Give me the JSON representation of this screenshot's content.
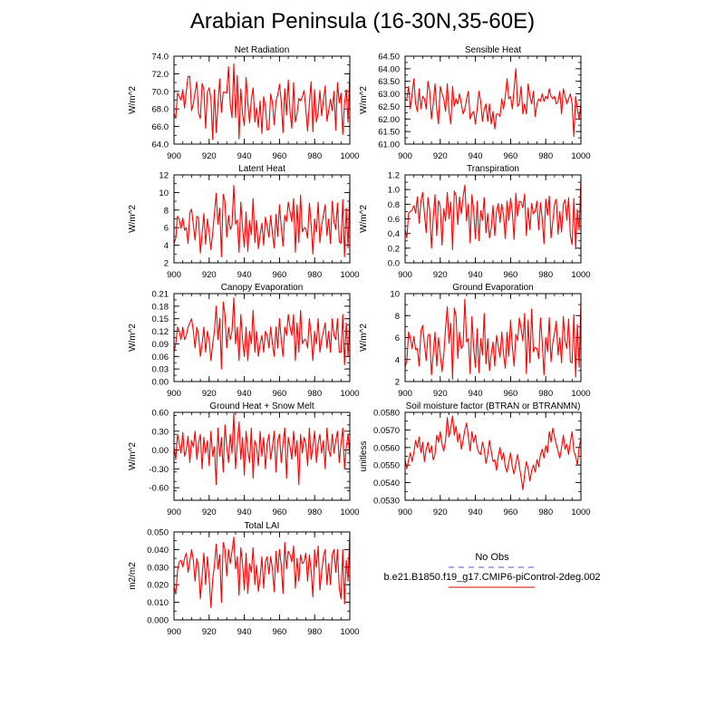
{
  "figure": {
    "title": "Arabian Peninsula (16-30N,35-60E)",
    "legend": {
      "entries": [
        {
          "label": "No Obs",
          "color": "#4a5bd6",
          "style": "dashed"
        },
        {
          "label": "b.e21.B1850.f19_g17.CMIP6-piControl-2deg.002",
          "color": "#e00000",
          "style": "solid"
        }
      ]
    },
    "colors": {
      "series": "#ff0000",
      "obs": "#4a5bd6"
    }
  },
  "chart_data": [
    {
      "type": "line",
      "title": "Net Radiation",
      "ylabel": "W/m^2",
      "xlim": [
        900,
        1000
      ],
      "ylim": [
        64.0,
        74.0
      ],
      "xticks": [
        900,
        920,
        940,
        960,
        980,
        1000
      ],
      "yticks": [
        64.0,
        66.0,
        68.0,
        70.0,
        72.0,
        74.0
      ],
      "ytick_labels": [
        "64.0",
        "66.0",
        "68.0",
        "70.0",
        "72.0",
        "74.0"
      ],
      "x_start": 900,
      "values": [
        67.5,
        67.0,
        69.8,
        69.4,
        69.0,
        70.2,
        68.1,
        70.0,
        71.7,
        71.7,
        67.8,
        68.6,
        69.9,
        71.1,
        67.5,
        66.9,
        70.9,
        70.2,
        65.8,
        69.9,
        70.4,
        69.2,
        64.5,
        70.2,
        65.3,
        68.5,
        71.4,
        67.6,
        69.9,
        69.9,
        69.8,
        72.8,
        68.5,
        67.0,
        73.1,
        67.0,
        71.8,
        64.6,
        70.3,
        67.4,
        66.1,
        71.6,
        68.7,
        66.4,
        69.1,
        70.4,
        66.5,
        68.1,
        65.9,
        68.9,
        65.2,
        69.4,
        68.3,
        65.6,
        65.7,
        69.7,
        68.7,
        66.2,
        68.9,
        69.6,
        70.8,
        68.9,
        65.3,
        70.3,
        67.3,
        71.3,
        67.7,
        65.8,
        71.0,
        66.5,
        67.5,
        69.2,
        68.9,
        69.4,
        70.1,
        67.9,
        65.5,
        68.7,
        71.1,
        65.4,
        70.2,
        66.5,
        67.6,
        70.1,
        67.2,
        69.0,
        70.6,
        66.6,
        67.8,
        69.1,
        67.8,
        70.0,
        65.6,
        71.0,
        68.7,
        69.8,
        65.1,
        68.6,
        70.2,
        66.5,
        72.3
      ]
    },
    {
      "type": "line",
      "title": "Sensible Heat",
      "ylabel": "W/m^2",
      "xlim": [
        900,
        1000
      ],
      "ylim": [
        61.0,
        64.5
      ],
      "xticks": [
        900,
        920,
        940,
        960,
        980,
        1000
      ],
      "yticks": [
        61.0,
        61.5,
        62.0,
        62.5,
        63.0,
        63.5,
        64.0,
        64.5
      ],
      "ytick_labels": [
        "61.00",
        "61.50",
        "62.00",
        "62.50",
        "63.00",
        "63.50",
        "64.00",
        "64.50"
      ],
      "x_start": 900,
      "values": [
        62.8,
        62.8,
        63.3,
        62.4,
        63.0,
        63.6,
        62.6,
        62.3,
        63.2,
        62.4,
        62.9,
        62.8,
        62.4,
        63.5,
        63.1,
        62.0,
        62.6,
        63.4,
        62.4,
        61.8,
        63.3,
        63.0,
        62.8,
        62.3,
        63.4,
        62.3,
        61.8,
        63.3,
        62.5,
        62.8,
        62.6,
        63.0,
        62.6,
        62.2,
        62.4,
        62.8,
        63.1,
        62.0,
        62.2,
        62.3,
        61.8,
        62.4,
        63.1,
        62.7,
        61.9,
        62.4,
        62.6,
        61.9,
        62.6,
        61.8,
        62.3,
        61.6,
        62.2,
        62.2,
        62.1,
        62.8,
        62.4,
        62.9,
        63.6,
        62.8,
        62.9,
        62.4,
        63.2,
        64.0,
        62.5,
        62.6,
        63.3,
        62.2,
        62.6,
        62.2,
        63.4,
        62.9,
        62.6,
        63.1,
        62.1,
        62.6,
        62.8,
        62.7,
        63.0,
        62.7,
        62.9,
        62.8,
        63.2,
        62.9,
        62.8,
        62.9,
        62.6,
        62.7,
        63.1,
        62.2,
        63.2,
        62.9,
        62.6,
        62.8,
        63.0,
        62.6,
        61.3,
        62.9,
        62.4,
        62.0,
        62.6
      ]
    },
    {
      "type": "line",
      "title": "Latent Heat",
      "ylabel": "W/m^2",
      "xlim": [
        900,
        1000
      ],
      "ylim": [
        2,
        12
      ],
      "xticks": [
        900,
        920,
        940,
        960,
        980,
        1000
      ],
      "yticks": [
        2,
        4,
        6,
        8,
        10,
        12
      ],
      "ytick_labels": [
        "2",
        "4",
        "6",
        "8",
        "10",
        "12"
      ],
      "x_start": 900,
      "values": [
        4.2,
        4.8,
        7.3,
        6.9,
        5.9,
        7.1,
        5.7,
        6.0,
        4.2,
        7.7,
        8.1,
        6.3,
        4.6,
        7.3,
        7.1,
        3.1,
        5.3,
        7.6,
        4.1,
        7.0,
        5.5,
        3.5,
        5.4,
        7.6,
        9.9,
        6.4,
        8.2,
        2.7,
        9.8,
        8.9,
        4.9,
        7.4,
        5.8,
        6.3,
        10.8,
        6.4,
        6.9,
        3.2,
        8.9,
        6.0,
        3.8,
        7.8,
        3.3,
        6.8,
        5.2,
        9.3,
        4.3,
        6.8,
        3.6,
        5.2,
        6.5,
        4.0,
        7.2,
        6.2,
        4.9,
        7.4,
        5.3,
        3.7,
        7.5,
        5.0,
        8.6,
        6.1,
        3.9,
        7.4,
        6.7,
        8.9,
        7.8,
        6.7,
        9.3,
        3.2,
        8.6,
        4.3,
        9.7,
        5.5,
        6.0,
        5.9,
        4.8,
        8.8,
        6.4,
        3.0,
        7.0,
        5.5,
        8.9,
        4.3,
        6.3,
        7.4,
        8.6,
        5.1,
        7.0,
        4.2,
        9.0,
        6.7,
        5.8,
        8.8,
        4.4,
        4.2,
        9.2,
        2.7,
        8.2,
        3.7,
        10.5
      ]
    },
    {
      "type": "line",
      "title": "Transpiration",
      "ylabel": "W/m^2",
      "xlim": [
        900,
        1000
      ],
      "ylim": [
        0.0,
        1.2
      ],
      "xticks": [
        900,
        920,
        940,
        960,
        980,
        1000
      ],
      "yticks": [
        0.0,
        0.2,
        0.4,
        0.6,
        0.8,
        1.0,
        1.2
      ],
      "ytick_labels": [
        "0.0",
        "0.2",
        "0.4",
        "0.6",
        "0.8",
        "1.0",
        "1.2"
      ],
      "x_start": 900,
      "values": [
        0.46,
        0.34,
        0.68,
        0.7,
        0.72,
        0.78,
        0.68,
        0.9,
        0.54,
        0.84,
        0.96,
        0.67,
        0.41,
        0.89,
        0.72,
        0.2,
        0.61,
        0.93,
        0.37,
        0.85,
        0.77,
        0.24,
        0.74,
        0.57,
        0.96,
        0.6,
        0.83,
        0.18,
        0.98,
        0.91,
        0.52,
        0.9,
        0.67,
        0.9,
        1.06,
        0.57,
        0.8,
        0.27,
        0.93,
        0.72,
        0.33,
        0.84,
        0.3,
        0.71,
        0.58,
        0.89,
        0.41,
        0.67,
        0.34,
        0.48,
        0.78,
        0.37,
        0.7,
        0.81,
        0.55,
        0.8,
        0.65,
        0.33,
        0.84,
        0.58,
        0.88,
        0.69,
        0.32,
        0.95,
        0.64,
        0.84,
        0.83,
        0.75,
        0.94,
        0.37,
        0.75,
        0.45,
        0.81,
        0.67,
        0.7,
        0.84,
        0.45,
        0.82,
        0.6,
        0.26,
        0.87,
        0.65,
        0.91,
        0.34,
        0.56,
        0.8,
        0.87,
        0.39,
        0.7,
        0.42,
        0.8,
        0.86,
        0.58,
        0.89,
        0.37,
        0.25,
        0.88,
        0.19,
        0.73,
        0.45,
        1.14
      ]
    },
    {
      "type": "line",
      "title": "Canopy Evaporation",
      "ylabel": "W/m^2",
      "xlim": [
        900,
        1000
      ],
      "ylim": [
        0.0,
        0.21
      ],
      "xticks": [
        900,
        920,
        940,
        960,
        980,
        1000
      ],
      "yticks": [
        0.0,
        0.03,
        0.06,
        0.09,
        0.12,
        0.15,
        0.18,
        0.21
      ],
      "ytick_labels": [
        "0.00",
        "0.03",
        "0.06",
        "0.09",
        "0.12",
        "0.15",
        "0.18",
        "0.21"
      ],
      "x_start": 900,
      "values": [
        0.07,
        0.09,
        0.13,
        0.12,
        0.1,
        0.13,
        0.1,
        0.11,
        0.13,
        0.14,
        0.15,
        0.12,
        0.08,
        0.13,
        0.11,
        0.06,
        0.09,
        0.13,
        0.07,
        0.12,
        0.1,
        0.05,
        0.09,
        0.12,
        0.18,
        0.1,
        0.15,
        0.03,
        0.19,
        0.16,
        0.08,
        0.13,
        0.1,
        0.12,
        0.2,
        0.09,
        0.13,
        0.05,
        0.16,
        0.1,
        0.06,
        0.13,
        0.05,
        0.12,
        0.09,
        0.17,
        0.07,
        0.12,
        0.06,
        0.09,
        0.11,
        0.07,
        0.12,
        0.11,
        0.08,
        0.13,
        0.09,
        0.06,
        0.13,
        0.08,
        0.15,
        0.1,
        0.06,
        0.13,
        0.11,
        0.16,
        0.13,
        0.11,
        0.16,
        0.05,
        0.14,
        0.07,
        0.17,
        0.09,
        0.1,
        0.1,
        0.08,
        0.15,
        0.11,
        0.05,
        0.12,
        0.09,
        0.15,
        0.07,
        0.1,
        0.12,
        0.14,
        0.08,
        0.12,
        0.07,
        0.15,
        0.11,
        0.1,
        0.15,
        0.07,
        0.07,
        0.16,
        0.04,
        0.14,
        0.06,
        0.15
      ]
    },
    {
      "type": "line",
      "title": "Ground Evaporation",
      "ylabel": "W/m^2",
      "xlim": [
        900,
        1000
      ],
      "ylim": [
        2,
        10
      ],
      "xticks": [
        900,
        920,
        940,
        960,
        980,
        1000
      ],
      "yticks": [
        2,
        4,
        6,
        8,
        10
      ],
      "ytick_labels": [
        "2",
        "4",
        "6",
        "8",
        "10"
      ],
      "x_start": 900,
      "values": [
        3.3,
        3.9,
        6.5,
        6.0,
        5.0,
        6.1,
        4.9,
        5.0,
        3.4,
        6.6,
        7.1,
        5.4,
        3.9,
        6.2,
        6.3,
        2.6,
        4.5,
        6.5,
        3.4,
        6.0,
        4.5,
        2.9,
        4.4,
        6.8,
        8.8,
        5.5,
        7.3,
        2.2,
        8.7,
        7.9,
        4.1,
        6.5,
        5.0,
        5.3,
        9.5,
        5.6,
        5.9,
        2.7,
        7.9,
        5.1,
        3.3,
        6.8,
        2.8,
        5.9,
        4.4,
        8.2,
        3.6,
        5.9,
        3.0,
        4.5,
        5.6,
        3.4,
        6.2,
        5.2,
        4.2,
        6.5,
        4.5,
        3.2,
        6.5,
        4.3,
        7.6,
        5.2,
        3.4,
        6.3,
        5.7,
        7.8,
        6.8,
        5.7,
        8.2,
        2.7,
        7.6,
        3.7,
        8.6,
        4.7,
        5.1,
        5.0,
        4.1,
        7.8,
        5.6,
        2.6,
        6.0,
        4.7,
        7.8,
        3.8,
        5.5,
        6.4,
        7.5,
        4.4,
        6.0,
        3.7,
        7.9,
        5.7,
        5.0,
        7.7,
        3.8,
        3.7,
        8.1,
        2.4,
        7.2,
        3.3,
        9.2
      ]
    },
    {
      "type": "line",
      "title": "Ground Heat + Snow Melt",
      "ylabel": "W/m^2",
      "xlim": [
        900,
        1000
      ],
      "ylim": [
        -0.8,
        0.6
      ],
      "xticks": [
        900,
        920,
        940,
        960,
        980,
        1000
      ],
      "yticks": [
        -0.6,
        -0.3,
        0.0,
        0.3,
        0.6
      ],
      "ytick_labels": [
        "-0.60",
        "-0.30",
        "0.00",
        "0.30",
        "0.60"
      ],
      "x_start": 900,
      "values": [
        0.05,
        -0.15,
        0.25,
        0.1,
        -0.05,
        0.28,
        -0.1,
        0.0,
        0.22,
        -0.2,
        0.15,
        0.05,
        0.3,
        -0.15,
        0.1,
        0.25,
        -0.3,
        0.2,
        -0.05,
        0.15,
        -0.25,
        0.3,
        -0.1,
        0.05,
        -0.55,
        0.35,
        -0.1,
        0.2,
        -0.35,
        0.4,
        0.05,
        -0.2,
        0.25,
        -0.05,
        0.58,
        -0.3,
        0.1,
        0.45,
        -0.15,
        0.2,
        -0.4,
        0.3,
        0.0,
        -0.2,
        0.35,
        -0.45,
        0.15,
        0.05,
        -0.25,
        0.3,
        -0.1,
        0.2,
        -0.3,
        0.1,
        0.25,
        -0.15,
        0.05,
        0.3,
        -0.35,
        0.15,
        0.25,
        -0.2,
        0.1,
        0.35,
        -0.45,
        0.2,
        0.05,
        -0.15,
        0.3,
        -0.1,
        0.15,
        -0.55,
        0.25,
        -0.05,
        0.2,
        0.1,
        -0.25,
        0.35,
        -0.15,
        0.05,
        0.3,
        -0.2,
        0.1,
        0.25,
        -0.05,
        0.15,
        -0.3,
        0.35,
        0.0,
        -0.1,
        0.25,
        -0.05,
        0.15,
        0.3,
        -0.2,
        0.1,
        0.35,
        -0.3,
        0.05,
        0.25,
        -0.1
      ]
    },
    {
      "type": "line",
      "title": "Soil moisture factor (BTRAN or BTRANMN)",
      "ylabel": "unitless",
      "xlim": [
        900,
        1000
      ],
      "ylim": [
        0.053,
        0.058
      ],
      "xticks": [
        900,
        920,
        940,
        960,
        980,
        1000
      ],
      "yticks": [
        0.053,
        0.054,
        0.055,
        0.056,
        0.057,
        0.058
      ],
      "ytick_labels": [
        "0.0530",
        "0.0540",
        "0.0550",
        "0.0560",
        "0.0570",
        "0.0580"
      ],
      "x_start": 900,
      "values": [
        0.0553,
        0.0548,
        0.0553,
        0.0557,
        0.0552,
        0.0557,
        0.0564,
        0.056,
        0.0566,
        0.0557,
        0.0563,
        0.0552,
        0.0559,
        0.0563,
        0.0557,
        0.0561,
        0.0553,
        0.0556,
        0.0567,
        0.0563,
        0.0569,
        0.0562,
        0.0558,
        0.0564,
        0.0577,
        0.0566,
        0.0571,
        0.0578,
        0.0567,
        0.0572,
        0.0563,
        0.0568,
        0.0559,
        0.0564,
        0.057,
        0.0574,
        0.0566,
        0.0558,
        0.0569,
        0.0563,
        0.0567,
        0.056,
        0.0557,
        0.0556,
        0.0563,
        0.0559,
        0.0551,
        0.0556,
        0.0564,
        0.0558,
        0.0552,
        0.0553,
        0.0547,
        0.0555,
        0.056,
        0.0553,
        0.0557,
        0.0549,
        0.0546,
        0.0552,
        0.0557,
        0.0549,
        0.0545,
        0.0551,
        0.0556,
        0.0549,
        0.0543,
        0.0536,
        0.0545,
        0.0552,
        0.0548,
        0.0541,
        0.0547,
        0.055,
        0.0546,
        0.0553,
        0.0549,
        0.0556,
        0.0559,
        0.0554,
        0.0561,
        0.0557,
        0.0569,
        0.0563,
        0.0571,
        0.0566,
        0.0562,
        0.0558,
        0.0554,
        0.056,
        0.0567,
        0.0559,
        0.0562,
        0.0556,
        0.0563,
        0.0569,
        0.0558,
        0.0555,
        0.055,
        0.056,
        0.0565
      ]
    },
    {
      "type": "line",
      "title": "Total LAI",
      "ylabel": "m2/m2",
      "xlim": [
        900,
        1000
      ],
      "ylim": [
        0.0,
        0.05
      ],
      "xticks": [
        900,
        920,
        940,
        960,
        980,
        1000
      ],
      "yticks": [
        0.0,
        0.01,
        0.02,
        0.03,
        0.04,
        0.05
      ],
      "ytick_labels": [
        "0.000",
        "0.010",
        "0.020",
        "0.030",
        "0.040",
        "0.050"
      ],
      "x_start": 900,
      "values": [
        0.019,
        0.015,
        0.028,
        0.033,
        0.034,
        0.03,
        0.035,
        0.038,
        0.027,
        0.033,
        0.04,
        0.034,
        0.022,
        0.035,
        0.03,
        0.012,
        0.025,
        0.038,
        0.02,
        0.036,
        0.024,
        0.007,
        0.023,
        0.031,
        0.043,
        0.029,
        0.037,
        0.01,
        0.044,
        0.04,
        0.025,
        0.04,
        0.032,
        0.039,
        0.047,
        0.029,
        0.036,
        0.014,
        0.041,
        0.032,
        0.017,
        0.038,
        0.015,
        0.032,
        0.027,
        0.041,
        0.02,
        0.031,
        0.016,
        0.024,
        0.036,
        0.018,
        0.033,
        0.036,
        0.026,
        0.036,
        0.029,
        0.016,
        0.039,
        0.027,
        0.04,
        0.031,
        0.015,
        0.044,
        0.029,
        0.039,
        0.037,
        0.033,
        0.042,
        0.018,
        0.035,
        0.022,
        0.037,
        0.032,
        0.033,
        0.038,
        0.022,
        0.037,
        0.028,
        0.013,
        0.04,
        0.03,
        0.042,
        0.017,
        0.027,
        0.036,
        0.04,
        0.02,
        0.032,
        0.02,
        0.037,
        0.04,
        0.027,
        0.04,
        0.018,
        0.012,
        0.04,
        0.009,
        0.034,
        0.022,
        0.049
      ]
    }
  ]
}
